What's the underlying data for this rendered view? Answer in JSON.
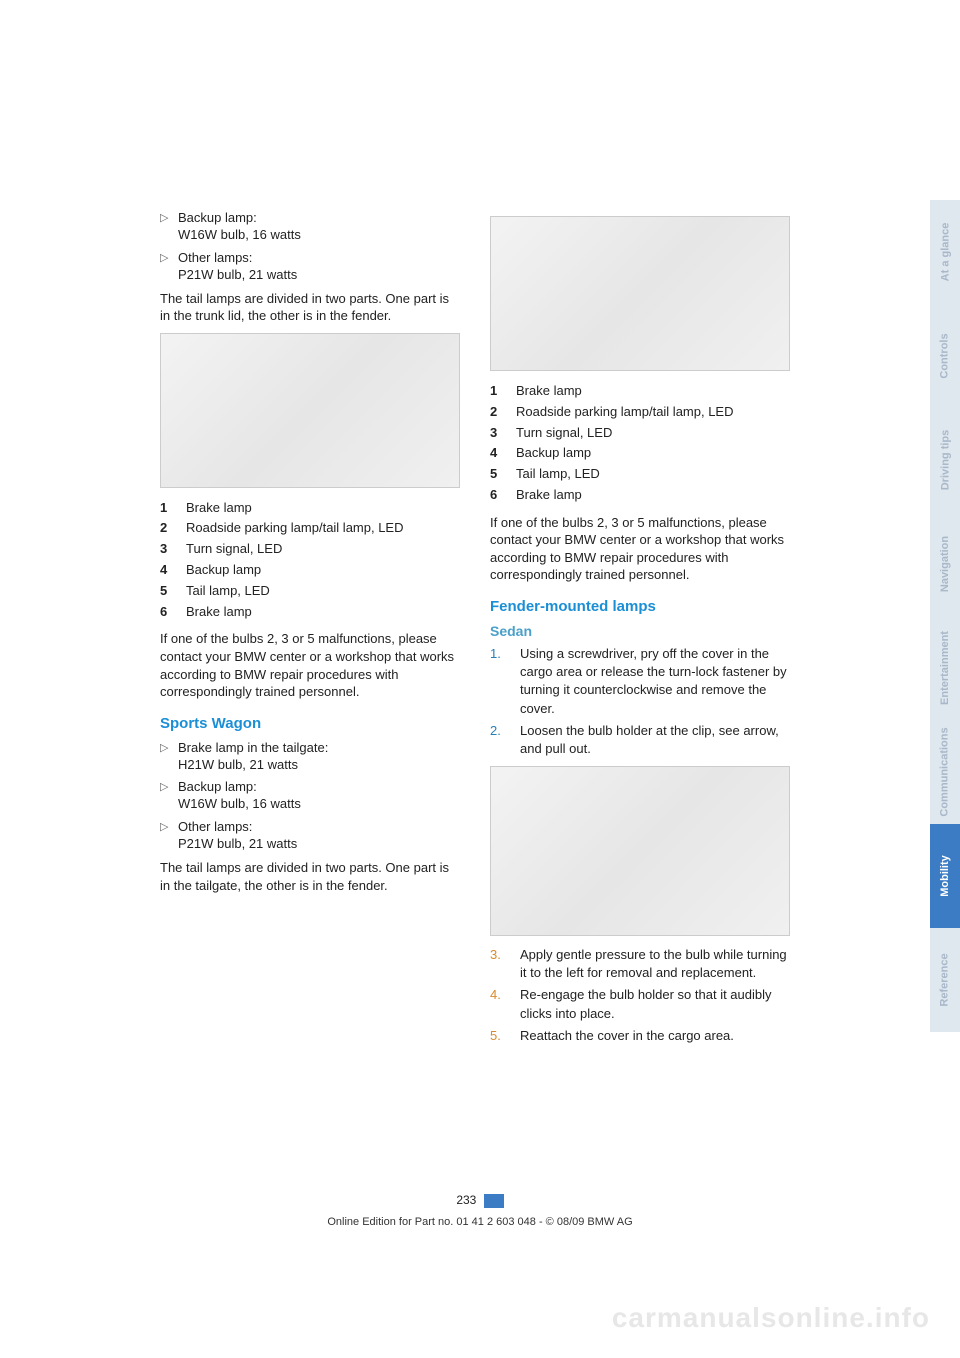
{
  "content": {
    "left": {
      "bullets1": [
        {
          "l1": "Backup lamp:",
          "l2": "W16W bulb, 16 watts"
        },
        {
          "l1": "Other lamps:",
          "l2": "P21W bulb, 21 watts"
        }
      ],
      "para1": "The tail lamps are divided in two parts. One part is in the trunk lid, the other is in the fender.",
      "numlist1": [
        {
          "n": "1",
          "t": "Brake lamp"
        },
        {
          "n": "2",
          "t": "Roadside parking lamp/tail lamp, LED"
        },
        {
          "n": "3",
          "t": "Turn signal, LED"
        },
        {
          "n": "4",
          "t": "Backup lamp"
        },
        {
          "n": "5",
          "t": "Tail lamp, LED"
        },
        {
          "n": "6",
          "t": "Brake lamp"
        }
      ],
      "para2": "If one of the bulbs 2, 3 or 5 malfunctions, please contact your BMW center or a workshop that works according to BMW repair procedures with correspondingly trained personnel.",
      "h_sports": "Sports Wagon",
      "bullets2": [
        {
          "l1": "Brake lamp in the tailgate:",
          "l2": "H21W bulb, 21 watts"
        },
        {
          "l1": "Backup lamp:",
          "l2": "W16W bulb, 16 watts"
        },
        {
          "l1": "Other lamps:",
          "l2": "P21W bulb, 21 watts"
        }
      ],
      "para3": "The tail lamps are divided in two parts. One part is in the tailgate, the other is in the fender."
    },
    "right": {
      "numlist1": [
        {
          "n": "1",
          "t": "Brake lamp"
        },
        {
          "n": "2",
          "t": "Roadside parking lamp/tail lamp, LED"
        },
        {
          "n": "3",
          "t": "Turn signal, LED"
        },
        {
          "n": "4",
          "t": "Backup lamp"
        },
        {
          "n": "5",
          "t": "Tail lamp, LED"
        },
        {
          "n": "6",
          "t": "Brake lamp"
        }
      ],
      "para1": "If one of the bulbs 2, 3 or 5 malfunctions, please contact your BMW center or a workshop that works according to BMW repair procedures with correspondingly trained personnel.",
      "h_fender": "Fender-mounted lamps",
      "h_sedan": "Sedan",
      "steps": [
        {
          "n": "1.",
          "t": "Using a screwdriver, pry off the cover in the cargo area or release the turn-lock fastener by turning it counterclockwise and remove the cover.",
          "c": "#2a7fb5"
        },
        {
          "n": "2.",
          "t": "Loosen the bulb holder at the clip, see arrow, and pull out.",
          "c": "#2a7fb5"
        },
        {
          "n": "3.",
          "t": "Apply gentle pressure to the bulb while turning it to the left for removal and replacement.",
          "c": "#d88a2e"
        },
        {
          "n": "4.",
          "t": "Re-engage the bulb holder so that it audibly clicks into place.",
          "c": "#d88a2e"
        },
        {
          "n": "5.",
          "t": "Reattach the cover in the cargo area.",
          "c": "#d88a2e"
        }
      ]
    }
  },
  "tabs": [
    {
      "label": "At a glance",
      "bg": "#dfe7ef",
      "fg": "#a9b8c9"
    },
    {
      "label": "Controls",
      "bg": "#dfe7ef",
      "fg": "#a9b8c9"
    },
    {
      "label": "Driving tips",
      "bg": "#dfe7ef",
      "fg": "#a9b8c9"
    },
    {
      "label": "Navigation",
      "bg": "#dfe7ef",
      "fg": "#a9b8c9"
    },
    {
      "label": "Entertainment",
      "bg": "#dfe7ef",
      "fg": "#a9b8c9"
    },
    {
      "label": "Communications",
      "bg": "#dfe7ef",
      "fg": "#a9b8c9"
    },
    {
      "label": "Mobility",
      "bg": "#3b7cc4",
      "fg": "#ffffff"
    },
    {
      "label": "Reference",
      "bg": "#dfe7ef",
      "fg": "#a9b8c9"
    }
  ],
  "page_number": "233",
  "footer": "Online Edition for Part no. 01 41 2 603 048 - © 08/09 BMW AG",
  "watermark": "carmanualsonline.info"
}
